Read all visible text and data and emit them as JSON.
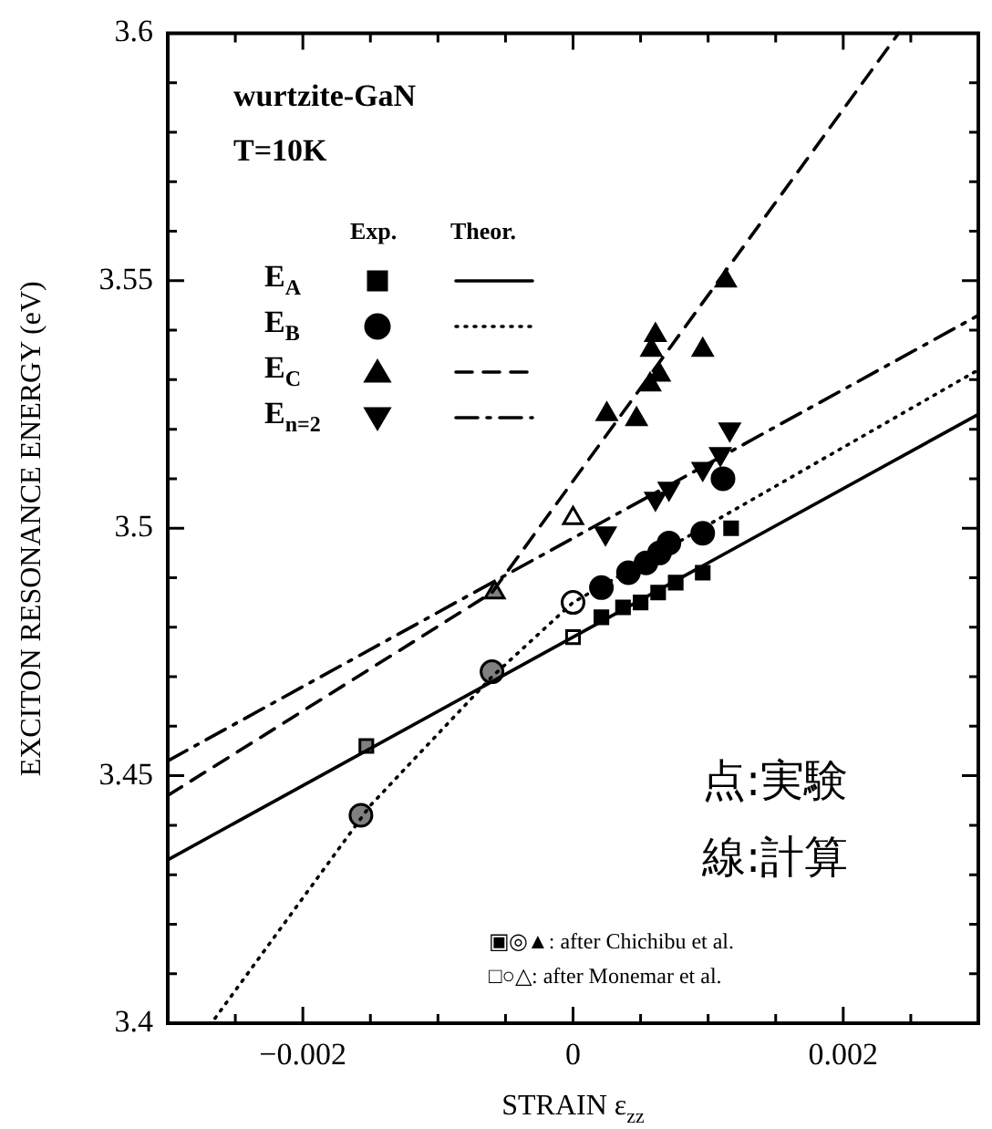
{
  "chart_data": {
    "type": "scatter",
    "xlabel": "STRAIN ε$_{zz}$",
    "ylabel": "EXCITON RESONANCE ENERGY (eV)",
    "annotations": [
      "wurtzite-GaN",
      "T=10K",
      "Exp.",
      "Theor.",
      "点:実験",
      "線:計算",
      "▣◎▲: after Chichibu et al.",
      "□○△: after Monemar et al."
    ],
    "legend": "top left",
    "xlim": [
      -0.003,
      0.003
    ],
    "xticks": [
      {
        "value": -0.0025,
        "label": null
      },
      {
        "value": -0.002,
        "label": "−0.002"
      },
      {
        "value": -0.0015,
        "label": null
      },
      {
        "value": -0.001,
        "label": null
      },
      {
        "value": -0.0005,
        "label": null
      },
      0,
      {
        "value": 0.0005,
        "label": null
      },
      {
        "value": 0.001,
        "label": null
      },
      {
        "value": 0.0015,
        "label": null
      },
      0.002,
      {
        "value": 0.0025,
        "label": null
      }
    ],
    "ylim": [
      3.4,
      3.6
    ],
    "yticks": [
      3.4,
      {
        "value": 3.41,
        "label": null
      },
      {
        "value": 3.42,
        "label": null
      },
      {
        "value": 3.43,
        "label": null
      },
      {
        "value": 3.44,
        "label": null
      },
      3.45,
      {
        "value": 3.46,
        "label": null
      },
      {
        "value": 3.47,
        "label": null
      },
      {
        "value": 3.48,
        "label": null
      },
      {
        "value": 3.49,
        "label": null
      },
      3.5,
      {
        "value": 3.51,
        "label": null
      },
      {
        "value": 3.52,
        "label": null
      },
      {
        "value": 3.53,
        "label": null
      },
      {
        "value": 3.54,
        "label": null
      },
      3.55,
      {
        "value": 3.56,
        "label": null
      },
      {
        "value": 3.57,
        "label": null
      },
      {
        "value": 3.58,
        "label": null
      },
      {
        "value": 3.59,
        "label": null
      },
      3.6
    ],
    "series": [
      {
        "type": "line",
        "name": "E$_{A}$",
        "color": "#000000",
        "marker": "none",
        "line_style": "solid",
        "x": [
          -0.003,
          0.003
        ],
        "values": [
          3.433,
          3.523
        ]
      },
      {
        "type": "line",
        "name": "E$_{B}$",
        "color": "#000000",
        "marker": "none",
        "line_style": "dotted",
        "x": [
          -0.00265,
          -0.0015,
          -0.0006,
          0,
          0.003
        ],
        "values": [
          3.401,
          3.444,
          3.47,
          3.485,
          3.532
        ]
      },
      {
        "type": "line",
        "name": "E$_{C}$",
        "color": "#000000",
        "marker": "none",
        "line_style": "dashed",
        "x": [
          -0.003,
          -0.0006,
          0.00241
        ],
        "values": [
          3.446,
          3.487,
          3.6
        ]
      },
      {
        "type": "line",
        "name": "E$_{n=2}$",
        "color": "#000000",
        "marker": "none",
        "line_style": "dashdot",
        "x": [
          -0.003,
          0,
          0.003
        ],
        "values": [
          3.453,
          3.498,
          3.543
        ]
      },
      {
        "type": "scatter",
        "color": "#000000",
        "marker": "square",
        "x": [
          0.00021,
          0.00037,
          0.0005,
          0.00063,
          0.00076,
          0.00096,
          0.00117
        ],
        "values": [
          3.482,
          3.484,
          3.485,
          3.487,
          3.489,
          3.491,
          3.5
        ]
      },
      {
        "type": "scatter",
        "color": "#000000",
        "marker": "circle",
        "x": [
          0.00021,
          0.00041,
          0.00054,
          0.00064,
          0.00071,
          0.00096,
          0.00111
        ],
        "values": [
          3.488,
          3.491,
          3.493,
          3.495,
          3.497,
          3.499,
          3.51
        ]
      },
      {
        "type": "scatter",
        "color": "#000000",
        "marker": "triangle",
        "x": [
          0.00025,
          0.00047,
          0.00057,
          0.00064,
          0.00058,
          0.00061,
          0.00096,
          0.00113
        ],
        "values": [
          3.523,
          3.522,
          3.529,
          3.531,
          3.536,
          3.539,
          3.536,
          3.55
        ]
      },
      {
        "type": "scatter",
        "color": "#000000",
        "marker": "triangle-down",
        "x": [
          0.00024,
          0.00061,
          0.00071,
          0.00096,
          0.00109,
          0.00116
        ],
        "values": [
          3.499,
          3.506,
          3.508,
          3.512,
          3.515,
          3.52
        ]
      },
      {
        "type": "scatter",
        "color": "#808080",
        "marker": "square",
        "x": [
          -0.00153
        ],
        "values": [
          3.456
        ]
      },
      {
        "type": "scatter",
        "color": "#808080",
        "marker": "circle",
        "x": [
          -0.00157,
          -0.0006
        ],
        "values": [
          3.442,
          3.471
        ]
      },
      {
        "type": "scatter",
        "color": "#808080",
        "marker": "triangle",
        "x": [
          -0.00058
        ],
        "values": [
          3.487
        ]
      },
      {
        "type": "scatter",
        "color": "#ffffff",
        "marker": "square",
        "x": [
          0
        ],
        "values": [
          3.478
        ]
      },
      {
        "type": "scatter",
        "color": "#ffffff",
        "marker": "circle",
        "x": [
          0
        ],
        "values": [
          3.485
        ]
      },
      {
        "type": "scatter",
        "color": "#ffffff",
        "marker": "triangle",
        "x": [
          0
        ],
        "values": [
          3.502
        ]
      }
    ]
  }
}
